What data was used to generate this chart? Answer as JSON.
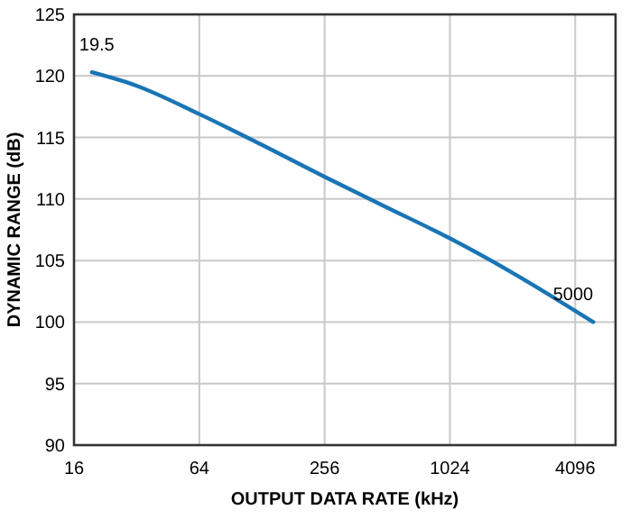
{
  "chart_data": {
    "type": "line",
    "xlabel": "OUTPUT DATA RATE (kHz)",
    "ylabel": "DYNAMIC RANGE (dB)",
    "log": "x",
    "x": [
      19.5,
      32,
      64,
      128,
      256,
      512,
      1024,
      2048,
      5000
    ],
    "series": [
      {
        "color": "#1a75b5",
        "values": [
          120.3,
          119.2,
          116.9,
          114.4,
          111.8,
          109.3,
          106.8,
          104.0,
          100.0
        ]
      }
    ],
    "xlim": [
      16,
      6400
    ],
    "xticks": [
      16,
      64,
      256,
      1024,
      4096
    ],
    "ylim": [
      90,
      125
    ],
    "yticks": [
      90,
      95,
      100,
      105,
      110,
      115,
      120,
      125
    ],
    "grid": true,
    "marker": "none",
    "line_style": "solid",
    "annotations": [
      {
        "text": "19.5",
        "x": 19.5,
        "y": 120.3
      },
      {
        "text": "5000",
        "x": 5000,
        "y": 100.0
      }
    ]
  }
}
